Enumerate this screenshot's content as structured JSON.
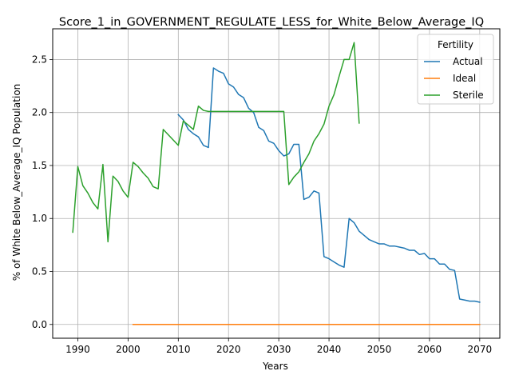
{
  "chart_data": {
    "type": "line",
    "title": "Score_1_in_GOVERNMENT_REGULATE_LESS_for_White_Below_Average_IQ",
    "xlabel": "Years",
    "ylabel": "% of White Below_Average_IQ Population",
    "xlim": [
      1985,
      2074
    ],
    "ylim": [
      -0.13,
      2.79
    ],
    "xticks": [
      1990,
      2000,
      2010,
      2020,
      2030,
      2040,
      2050,
      2060,
      2070
    ],
    "yticks": [
      0.0,
      0.5,
      1.0,
      1.5,
      2.0,
      2.5
    ],
    "ytick_labels": [
      "0.0",
      "0.5",
      "1.0",
      "1.5",
      "2.0",
      "2.5"
    ],
    "grid": true,
    "legend": {
      "title": "Fertility",
      "placement": "top-right"
    },
    "series": [
      {
        "name": "Actual",
        "color": "#1f77b4",
        "points": [
          [
            2010,
            1.98
          ],
          [
            2011,
            1.93
          ],
          [
            2012,
            1.84
          ],
          [
            2013,
            1.8
          ],
          [
            2014,
            1.77
          ],
          [
            2015,
            1.69
          ],
          [
            2016,
            1.67
          ],
          [
            2017,
            2.42
          ],
          [
            2018,
            2.39
          ],
          [
            2019,
            2.37
          ],
          [
            2020,
            2.27
          ],
          [
            2021,
            2.24
          ],
          [
            2022,
            2.17
          ],
          [
            2023,
            2.14
          ],
          [
            2024,
            2.04
          ],
          [
            2025,
            2.0
          ],
          [
            2026,
            1.86
          ],
          [
            2027,
            1.83
          ],
          [
            2028,
            1.73
          ],
          [
            2029,
            1.71
          ],
          [
            2030,
            1.64
          ],
          [
            2031,
            1.59
          ],
          [
            2032,
            1.61
          ],
          [
            2033,
            1.7
          ],
          [
            2034,
            1.7
          ],
          [
            2035,
            1.18
          ],
          [
            2036,
            1.2
          ],
          [
            2037,
            1.26
          ],
          [
            2038,
            1.24
          ],
          [
            2039,
            0.64
          ],
          [
            2040,
            0.62
          ],
          [
            2041,
            0.59
          ],
          [
            2042,
            0.56
          ],
          [
            2043,
            0.54
          ],
          [
            2044,
            1.0
          ],
          [
            2045,
            0.96
          ],
          [
            2046,
            0.88
          ],
          [
            2047,
            0.84
          ],
          [
            2048,
            0.8
          ],
          [
            2049,
            0.78
          ],
          [
            2050,
            0.76
          ],
          [
            2051,
            0.76
          ],
          [
            2052,
            0.74
          ],
          [
            2053,
            0.74
          ],
          [
            2054,
            0.73
          ],
          [
            2055,
            0.72
          ],
          [
            2056,
            0.7
          ],
          [
            2057,
            0.7
          ],
          [
            2058,
            0.66
          ],
          [
            2059,
            0.67
          ],
          [
            2060,
            0.62
          ],
          [
            2061,
            0.62
          ],
          [
            2062,
            0.57
          ],
          [
            2063,
            0.57
          ],
          [
            2064,
            0.52
          ],
          [
            2065,
            0.51
          ],
          [
            2066,
            0.24
          ],
          [
            2067,
            0.23
          ],
          [
            2068,
            0.22
          ],
          [
            2069,
            0.22
          ],
          [
            2070,
            0.21
          ]
        ]
      },
      {
        "name": "Ideal",
        "color": "#ff7f0e",
        "points": [
          [
            2001,
            0.0
          ],
          [
            2070,
            0.0
          ]
        ]
      },
      {
        "name": "Sterile",
        "color": "#2ca02c",
        "points": [
          [
            1989,
            0.87
          ],
          [
            1990,
            1.49
          ],
          [
            1991,
            1.31
          ],
          [
            1992,
            1.24
          ],
          [
            1993,
            1.15
          ],
          [
            1994,
            1.09
          ],
          [
            1995,
            1.51
          ],
          [
            1996,
            0.78
          ],
          [
            1997,
            1.4
          ],
          [
            1998,
            1.35
          ],
          [
            1999,
            1.26
          ],
          [
            2000,
            1.2
          ],
          [
            2001,
            1.53
          ],
          [
            2002,
            1.49
          ],
          [
            2003,
            1.43
          ],
          [
            2004,
            1.38
          ],
          [
            2005,
            1.3
          ],
          [
            2006,
            1.28
          ],
          [
            2007,
            1.84
          ],
          [
            2008,
            1.79
          ],
          [
            2009,
            1.74
          ],
          [
            2010,
            1.69
          ],
          [
            2011,
            1.92
          ],
          [
            2012,
            1.88
          ],
          [
            2013,
            1.84
          ],
          [
            2014,
            2.06
          ],
          [
            2015,
            2.02
          ],
          [
            2016,
            2.01
          ],
          [
            2017,
            2.01
          ],
          [
            2018,
            2.01
          ],
          [
            2019,
            2.01
          ],
          [
            2020,
            2.01
          ],
          [
            2021,
            2.01
          ],
          [
            2022,
            2.01
          ],
          [
            2023,
            2.01
          ],
          [
            2024,
            2.01
          ],
          [
            2025,
            2.01
          ],
          [
            2026,
            2.01
          ],
          [
            2027,
            2.01
          ],
          [
            2028,
            2.01
          ],
          [
            2029,
            2.01
          ],
          [
            2030,
            2.01
          ],
          [
            2031,
            2.01
          ],
          [
            2032,
            1.32
          ],
          [
            2033,
            1.39
          ],
          [
            2034,
            1.44
          ],
          [
            2035,
            1.53
          ],
          [
            2036,
            1.61
          ],
          [
            2037,
            1.73
          ],
          [
            2038,
            1.8
          ],
          [
            2039,
            1.89
          ],
          [
            2040,
            2.06
          ],
          [
            2041,
            2.17
          ],
          [
            2042,
            2.34
          ],
          [
            2043,
            2.5
          ],
          [
            2044,
            2.5
          ],
          [
            2045,
            2.66
          ],
          [
            2046,
            1.9
          ]
        ]
      }
    ]
  }
}
